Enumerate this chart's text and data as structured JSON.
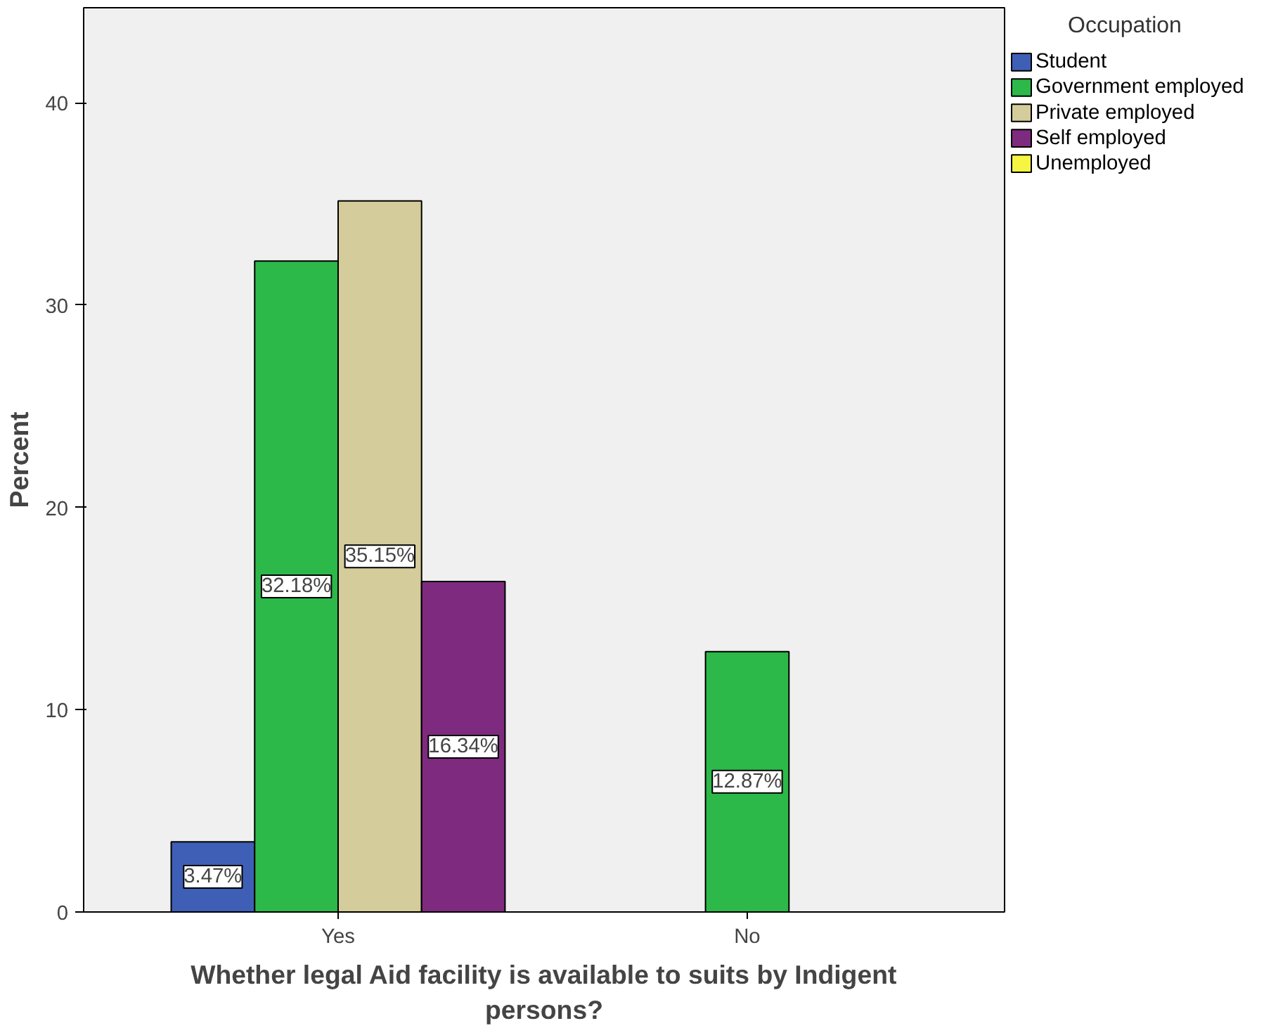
{
  "chart_data": {
    "type": "bar",
    "xlabel": "Whether legal Aid facility is available to suits by Indigent persons?",
    "ylabel": "Percent",
    "legend_title": "Occupation",
    "legend": "top right",
    "categories": [
      "Yes",
      "No"
    ],
    "ylim": [
      0,
      44.7
    ],
    "yticks": [
      0,
      10,
      20,
      30,
      40
    ],
    "grid": false,
    "series": [
      {
        "name": "Student",
        "color": "#3e5fb5",
        "values": [
          3.47,
          null
        ],
        "value_labels": [
          "3.47%",
          null
        ]
      },
      {
        "name": "Government employed",
        "color": "#2db84a",
        "values": [
          32.18,
          12.87
        ],
        "value_labels": [
          "32.18%",
          "12.87%"
        ]
      },
      {
        "name": "Private employed",
        "color": "#d4cc9a",
        "values": [
          35.15,
          null
        ],
        "value_labels": [
          "35.15%",
          null
        ]
      },
      {
        "name": "Self employed",
        "color": "#7e2a7e",
        "values": [
          16.34,
          null
        ],
        "value_labels": [
          "16.34%",
          null
        ]
      },
      {
        "name": "Unemployed",
        "color": "#f5f542",
        "values": [
          null,
          null
        ],
        "value_labels": [
          null,
          null
        ]
      }
    ]
  }
}
